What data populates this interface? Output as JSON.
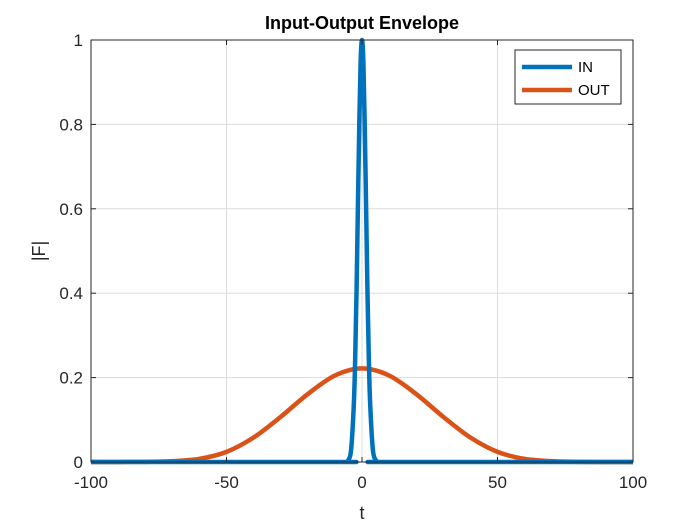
{
  "chart_data": {
    "type": "line",
    "title": "Input-Output Envelope",
    "xlabel": "t",
    "ylabel": "|F|",
    "xlim": [
      -100,
      100
    ],
    "ylim": [
      0,
      1
    ],
    "x_ticks": [
      -100,
      -50,
      0,
      50,
      100
    ],
    "y_ticks": [
      0,
      0.2,
      0.4,
      0.6,
      0.8,
      1
    ],
    "x_tick_labels": [
      "-100",
      "-50",
      "0",
      "50",
      "100"
    ],
    "y_tick_labels": [
      "0",
      "0.2",
      "0.4",
      "0.6",
      "0.8",
      "1"
    ],
    "grid": true,
    "legend_position": "top-right",
    "series": [
      {
        "name": "IN",
        "color": "#0072BD",
        "x": [
          -100,
          -10,
          -6,
          -5,
          -4,
          -3,
          -2.5,
          -2,
          -1.5,
          -1,
          -0.5,
          0,
          0.5,
          1,
          1.5,
          2,
          2.5,
          3,
          4,
          5,
          6,
          10,
          100
        ],
        "y": [
          0,
          0,
          0,
          0.005,
          0.03,
          0.14,
          0.25,
          0.41,
          0.61,
          0.8,
          0.95,
          1,
          0.95,
          0.8,
          0.61,
          0.41,
          0.25,
          0.14,
          0.03,
          0.005,
          0,
          0,
          0
        ]
      },
      {
        "name": "OUT",
        "color": "#D95319",
        "x": [
          -100,
          -80,
          -70,
          -60,
          -50,
          -40,
          -30,
          -20,
          -10,
          0,
          10,
          20,
          30,
          40,
          50,
          60,
          70,
          80,
          100
        ],
        "y": [
          0,
          0.0004,
          0.002,
          0.0075,
          0.024,
          0.058,
          0.107,
          0.161,
          0.205,
          0.222,
          0.205,
          0.161,
          0.107,
          0.058,
          0.024,
          0.0075,
          0.002,
          0.0004,
          0
        ]
      }
    ]
  }
}
